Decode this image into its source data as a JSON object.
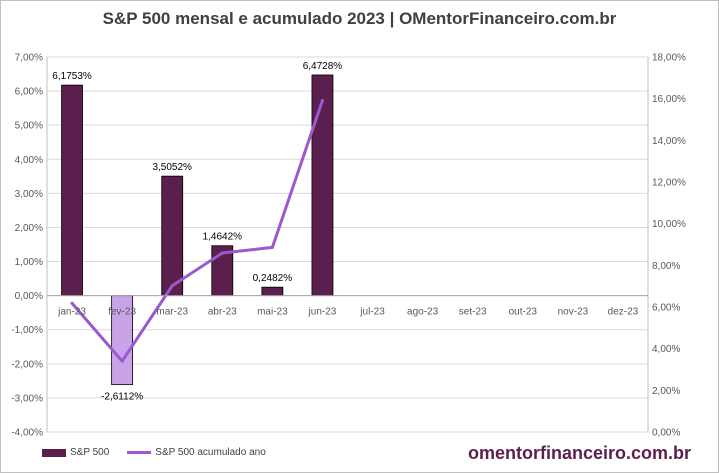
{
  "chart_data": {
    "type": "bar",
    "title": "S&P 500 mensal e acumulado 2023 | OMentorFinanceiro.com.br",
    "categories": [
      "jan-23",
      "fev-23",
      "mar-23",
      "abr-23",
      "mai-23",
      "jun-23",
      "jul-23",
      "ago-23",
      "set-23",
      "out-23",
      "nov-23",
      "dez-23"
    ],
    "series": [
      {
        "name": "S&P 500",
        "type": "bar",
        "axis": "left",
        "values": [
          6.1753,
          -2.6112,
          3.5052,
          1.4642,
          0.2482,
          6.4728,
          null,
          null,
          null,
          null,
          null,
          null
        ],
        "labels": [
          "6,1753%",
          "-2,6112%",
          "3,5052%",
          "1,4642%",
          "0,2482%",
          "6,4728%",
          "",
          "",
          "",
          "",
          "",
          ""
        ],
        "color": "#5a1f4c",
        "negative_color": "#c9a3e8"
      },
      {
        "name": "S&P 500 acumulado ano",
        "type": "line",
        "axis": "right",
        "values": [
          6.18,
          3.4,
          7.02,
          8.59,
          8.86,
          15.91,
          null,
          null,
          null,
          null,
          null,
          null
        ],
        "color": "#9b59d0"
      }
    ],
    "y_left": {
      "min": -4,
      "max": 7,
      "step": 1,
      "tick_labels": [
        "-4,00%",
        "-3,00%",
        "-2,00%",
        "-1,00%",
        "0,00%",
        "1,00%",
        "2,00%",
        "3,00%",
        "4,00%",
        "5,00%",
        "6,00%",
        "7,00%"
      ]
    },
    "y_right": {
      "min": 0,
      "max": 18,
      "step": 2,
      "tick_labels": [
        "0,00%",
        "2,00%",
        "4,00%",
        "6,00%",
        "8,00%",
        "10,00%",
        "12,00%",
        "14,00%",
        "16,00%",
        "18,00%"
      ]
    },
    "grid": true,
    "legend_position": "bottom-left",
    "watermark": "omentorfinanceiro.com.br"
  }
}
